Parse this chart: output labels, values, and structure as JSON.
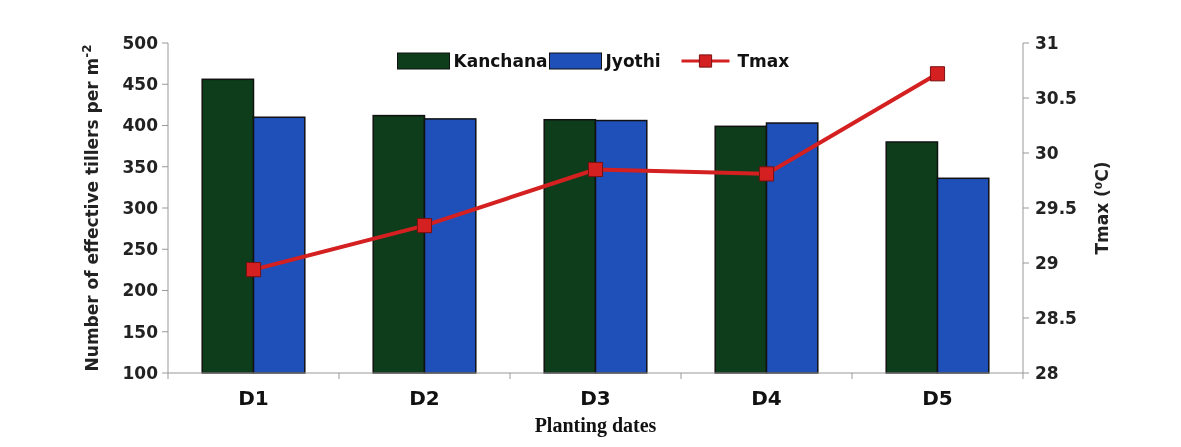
{
  "chart_data": {
    "type": "bar",
    "xlabel": "Planting dates",
    "ylabel": "Number of effective tillers per m$^{-2}$",
    "y2label": "Tmax (⁰C)",
    "categories": [
      "D1",
      "D2",
      "D3",
      "D4",
      "D5"
    ],
    "series": [
      {
        "name": "Kanchana",
        "color": "#0d3d1a",
        "values": [
          456,
          412,
          407,
          399,
          380
        ]
      },
      {
        "name": "Jyothi",
        "color": "#1f4fb8",
        "values": [
          410,
          408,
          406,
          403,
          336
        ]
      },
      {
        "name": "Tmax",
        "type": "line",
        "axis": "y2",
        "color": "#d42020",
        "marker": "square",
        "values": [
          28.94,
          29.34,
          29.85,
          29.81,
          30.72
        ]
      }
    ],
    "ylim": [
      100,
      500
    ],
    "yticks": [
      100,
      150,
      200,
      250,
      300,
      350,
      400,
      450,
      500
    ],
    "y2lim": [
      28,
      31
    ],
    "y2ticks": [
      28,
      28.5,
      29,
      29.5,
      30,
      30.5,
      31
    ],
    "legend": "top",
    "grid": false
  }
}
